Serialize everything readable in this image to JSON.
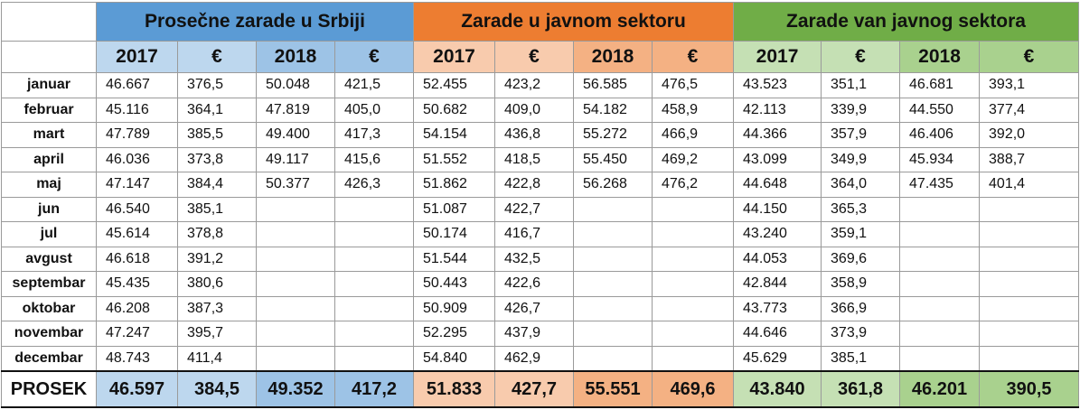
{
  "groups": [
    {
      "title": "Prosečne zarade u Srbiji"
    },
    {
      "title": "Zarade u javnom sektoru"
    },
    {
      "title": "Zarade van javnog sektora"
    }
  ],
  "subheaders": [
    "2017",
    "€",
    "2018",
    "€"
  ],
  "rows": [
    {
      "month": "januar",
      "v": [
        "46.667",
        "376,5",
        "50.048",
        "421,5",
        "52.455",
        "423,2",
        "56.585",
        "476,5",
        "43.523",
        "351,1",
        "46.681",
        "393,1"
      ]
    },
    {
      "month": "februar",
      "v": [
        "45.116",
        "364,1",
        "47.819",
        "405,0",
        "50.682",
        "409,0",
        "54.182",
        "458,9",
        "42.113",
        "339,9",
        "44.550",
        "377,4"
      ]
    },
    {
      "month": "mart",
      "v": [
        "47.789",
        "385,5",
        "49.400",
        "417,3",
        "54.154",
        "436,8",
        "55.272",
        "466,9",
        "44.366",
        "357,9",
        "46.406",
        "392,0"
      ]
    },
    {
      "month": "april",
      "v": [
        "46.036",
        "373,8",
        "49.117",
        "415,6",
        "51.552",
        "418,5",
        "55.450",
        "469,2",
        "43.099",
        "349,9",
        "45.934",
        "388,7"
      ]
    },
    {
      "month": "maj",
      "v": [
        "47.147",
        "384,4",
        "50.377",
        "426,3",
        "51.862",
        "422,8",
        "56.268",
        "476,2",
        "44.648",
        "364,0",
        "47.435",
        "401,4"
      ]
    },
    {
      "month": "jun",
      "v": [
        "46.540",
        "385,1",
        "",
        "",
        "51.087",
        "422,7",
        "",
        "",
        "44.150",
        "365,3",
        "",
        ""
      ]
    },
    {
      "month": "jul",
      "v": [
        "45.614",
        "378,8",
        "",
        "",
        "50.174",
        "416,7",
        "",
        "",
        "43.240",
        "359,1",
        "",
        ""
      ]
    },
    {
      "month": "avgust",
      "v": [
        "46.618",
        "391,2",
        "",
        "",
        "51.544",
        "432,5",
        "",
        "",
        "44.053",
        "369,6",
        "",
        ""
      ]
    },
    {
      "month": "septembar",
      "v": [
        "45.435",
        "380,6",
        "",
        "",
        "50.443",
        "422,6",
        "",
        "",
        "42.844",
        "358,9",
        "",
        ""
      ]
    },
    {
      "month": "oktobar",
      "v": [
        "46.208",
        "387,3",
        "",
        "",
        "50.909",
        "426,7",
        "",
        "",
        "43.773",
        "366,9",
        "",
        ""
      ]
    },
    {
      "month": "novembar",
      "v": [
        "47.247",
        "395,7",
        "",
        "",
        "52.295",
        "437,9",
        "",
        "",
        "44.646",
        "373,9",
        "",
        ""
      ]
    },
    {
      "month": "decembar",
      "v": [
        "48.743",
        "411,4",
        "",
        "",
        "54.840",
        "462,9",
        "",
        "",
        "45.629",
        "385,1",
        "",
        ""
      ]
    }
  ],
  "total": {
    "label": "PROSEK",
    "v": [
      "46.597",
      "384,5",
      "49.352",
      "417,2",
      "51.833",
      "427,7",
      "55.551",
      "469,6",
      "43.840",
      "361,8",
      "46.201",
      "390,5"
    ]
  },
  "colors": {
    "blue_title": "#5b9bd5",
    "blue_dark": "#9dc3e6",
    "blue_light": "#bdd7ee",
    "orange_title": "#ed7d31",
    "orange_dark": "#f4b183",
    "orange_light": "#f8cbad",
    "green_title": "#70ad47",
    "green_dark": "#a9d18e",
    "green_light": "#c5e0b4"
  }
}
